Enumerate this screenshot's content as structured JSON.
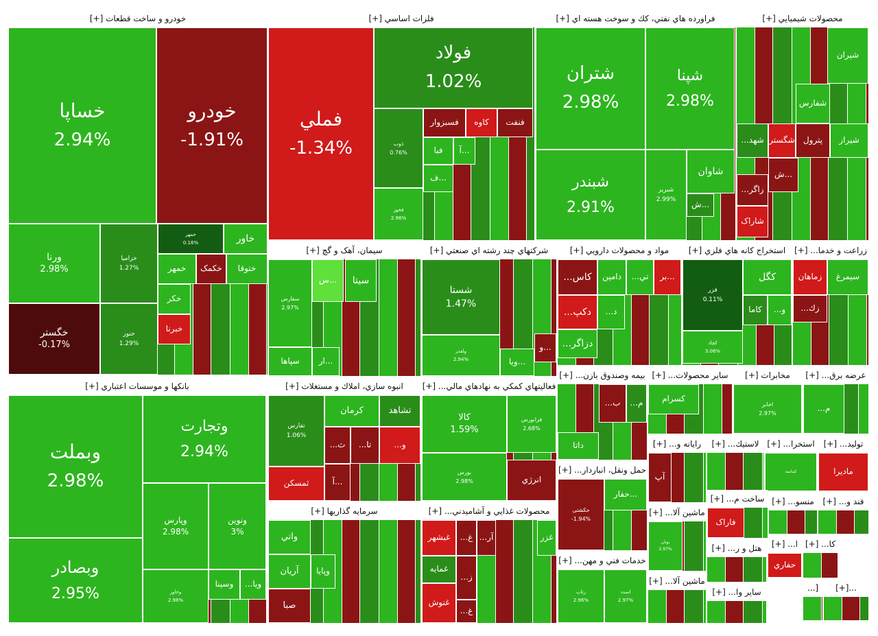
{
  "chart_data": {
    "type": "treemap",
    "colors": {
      "up_strong": "#2db51f",
      "up_mid": "#2a8d1a",
      "up_dark": "#135d12",
      "down": "#8b1515",
      "down_dark": "#4e0b0b",
      "down_bright": "#d11a1a",
      "neutral_light": "#5fe03a"
    },
    "sectors": [
      {
        "name": "خودرو و ساخت قطعات [+]",
        "tiles": [
          {
            "name": "خساپا",
            "pct": "2.94%",
            "value": 2.94
          },
          {
            "name": "خودرو",
            "pct": "-1.91%",
            "value": -1.91
          },
          {
            "name": "ورنا",
            "pct": "2.98%",
            "value": 2.98
          },
          {
            "name": "خزامیا",
            "pct": "1.27%",
            "value": 1.27
          },
          {
            "name": "خگستر",
            "pct": "-0.17%",
            "value": -0.17
          },
          {
            "name": "خنور",
            "pct": "1.29%",
            "value": 1.29
          },
          {
            "name": "خمهر",
            "pct": "0.16%",
            "value": 0.16
          },
          {
            "name": "خاور",
            "pct": "",
            "value": 2.5
          },
          {
            "name": "خمهر",
            "pct": "",
            "value": 2.4
          },
          {
            "name": "خکمک",
            "pct": "",
            "value": -1.5
          },
          {
            "name": "ختوقا",
            "pct": "",
            "value": 2.6
          },
          {
            "name": "خکر",
            "pct": "",
            "value": 2.2
          },
          {
            "name": "خبرنا",
            "pct": "",
            "value": -1.2
          }
        ]
      },
      {
        "name": "فلزات اساسي [+]",
        "tiles": [
          {
            "name": "فملي",
            "pct": "-1.34%",
            "value": -1.34
          },
          {
            "name": "فولاد",
            "pct": "1.02%",
            "value": 1.02
          },
          {
            "name": "ذوب",
            "pct": "0.76%",
            "value": 0.76
          },
          {
            "name": "فخوز",
            "pct": "2.96%",
            "value": 2.96
          },
          {
            "name": "فسبزوار",
            "pct": "",
            "value": -1.0
          },
          {
            "name": "کاوه",
            "pct": "",
            "value": -1.2
          },
          {
            "name": "فنفت",
            "pct": "",
            "value": -0.9
          },
          {
            "name": "فبا",
            "pct": "",
            "value": 2.0
          },
          {
            "name": "آ...",
            "pct": "",
            "value": 2.1
          },
          {
            "name": "ف...",
            "pct": "",
            "value": 2.3
          }
        ]
      },
      {
        "name": "فراورده هاي نفتي، كك و سوخت هسته اي [+]",
        "tiles": [
          {
            "name": "شتران",
            "pct": "2.98%",
            "value": 2.98
          },
          {
            "name": "شپنا",
            "pct": "2.98%",
            "value": 2.98
          },
          {
            "name": "شبندر",
            "pct": "2.91%",
            "value": 2.91
          },
          {
            "name": "شبریز",
            "pct": "2.99%",
            "value": 2.99
          },
          {
            "name": "شاوان",
            "pct": "",
            "value": 2.5
          },
          {
            "name": "ش...",
            "pct": "",
            "value": 1.1
          }
        ]
      },
      {
        "name": "محصولات شيميايي [+]",
        "tiles": [
          {
            "name": "شیران",
            "pct": "",
            "value": 2.5
          },
          {
            "name": "شفارس",
            "pct": "",
            "value": 2.4
          },
          {
            "name": "شیراز",
            "pct": "",
            "value": 2.3
          },
          {
            "name": "پترول",
            "pct": "",
            "value": -1.1
          },
          {
            "name": "شگستر",
            "pct": "",
            "value": -1.3
          },
          {
            "name": "...شهد",
            "pct": "",
            "value": 1.0
          },
          {
            "name": "ش...",
            "pct": "",
            "value": -1.0
          },
          {
            "name": "...زاگر",
            "pct": "",
            "value": -1.1
          },
          {
            "name": "شاراک",
            "pct": "",
            "value": -1.2
          }
        ]
      },
      {
        "name": "سیمان، آهک و گچ [+]",
        "tiles": [
          {
            "name": "سفارس",
            "pct": "2.97%",
            "value": 2.97
          },
          {
            "name": "سیتا",
            "pct": "",
            "value": 2.6
          },
          {
            "name": "س...",
            "pct": "",
            "value": 0.0
          },
          {
            "name": "سپاها",
            "pct": "",
            "value": 2.4
          },
          {
            "name": "ار...",
            "pct": "",
            "value": 2.2
          }
        ]
      },
      {
        "name": "شرکتهاي چند رشته اي صنعتي [+]",
        "tiles": [
          {
            "name": "شستا",
            "pct": "1.47%",
            "value": 1.47
          },
          {
            "name": "ولغدر",
            "pct": "2.94%",
            "value": 2.94
          },
          {
            "name": "ویا...",
            "pct": "",
            "value": 2.3
          },
          {
            "name": "و...",
            "pct": "",
            "value": -1.0
          }
        ]
      },
      {
        "name": "مواد و محصولات دارويي [+]",
        "tiles": [
          {
            "name": "...کاس",
            "pct": "",
            "value": -1.1
          },
          {
            "name": "دامین",
            "pct": "",
            "value": 2.4
          },
          {
            "name": "...تي",
            "pct": "",
            "value": 2.3
          },
          {
            "name": "...دکپ",
            "pct": "",
            "value": -1.2
          },
          {
            "name": "...دزاگر",
            "pct": "",
            "value": 2.2
          },
          {
            "name": "...د",
            "pct": "",
            "value": 2.1
          },
          {
            "name": "بر...",
            "pct": "",
            "value": -1.3
          }
        ]
      },
      {
        "name": "استخراج کانه هاي فلزي [+]",
        "tiles": [
          {
            "name": "فزر",
            "pct": "0.11%",
            "value": 0.11
          },
          {
            "name": "کگل",
            "pct": "",
            "value": 2.5
          },
          {
            "name": "کاما",
            "pct": "",
            "value": 1.0
          },
          {
            "name": "...و",
            "pct": "",
            "value": 2.1
          },
          {
            "name": "کچاد",
            "pct": "3.06%",
            "value": 3.06
          }
        ]
      },
      {
        "name": "زراعت و خدما... [+]",
        "tiles": [
          {
            "name": "زماهان",
            "pct": "",
            "value": -1.2
          },
          {
            "name": "سیمرغ",
            "pct": "",
            "value": 2.4
          },
          {
            "name": "...زك",
            "pct": "",
            "value": -1.1
          }
        ]
      },
      {
        "name": "بانکها و موسسات اعتباري [+]",
        "tiles": [
          {
            "name": "وبملت",
            "pct": "2.98%",
            "value": 2.98
          },
          {
            "name": "وتجارت",
            "pct": "2.94%",
            "value": 2.94
          },
          {
            "name": "وبصادر",
            "pct": "2.95%",
            "value": 2.95
          },
          {
            "name": "وپارس",
            "pct": "2.98%",
            "value": 2.98
          },
          {
            "name": "ونوين",
            "pct": "3%",
            "value": 3.0
          },
          {
            "name": "وخاور",
            "pct": "2.98%",
            "value": 2.98
          },
          {
            "name": "وسینا",
            "pct": "",
            "value": 2.4
          },
          {
            "name": "...ویا",
            "pct": "",
            "value": 2.3
          }
        ]
      },
      {
        "name": "انبوه سازي، املاك و مستغلات [+]",
        "tiles": [
          {
            "name": "تفارس",
            "pct": "1.06%",
            "value": 1.06
          },
          {
            "name": "کرمان",
            "pct": "",
            "value": 2.5
          },
          {
            "name": "تشاهد",
            "pct": "",
            "value": 1.0
          },
          {
            "name": "ثمسکن",
            "pct": "",
            "value": -1.2
          },
          {
            "name": "...تا",
            "pct": "",
            "value": -1.0
          },
          {
            "name": "...ث",
            "pct": "",
            "value": -1.1
          },
          {
            "name": "آ...",
            "pct": "",
            "value": -1.0
          },
          {
            "name": "...و",
            "pct": "",
            "value": -1.2
          }
        ]
      },
      {
        "name": "فعاليتهاي كمكي به نهادهاي مالي... [+]",
        "tiles": [
          {
            "name": "کالا",
            "pct": "1.59%",
            "value": 1.59
          },
          {
            "name": "فرابورس",
            "pct": "2.68%",
            "value": 2.68
          },
          {
            "name": "بورس",
            "pct": "2.98%",
            "value": 2.98
          },
          {
            "name": "انرژي",
            "pct": "",
            "value": -1.1
          }
        ]
      },
      {
        "name": "بیمه وصندوق بازن... [+]",
        "tiles": [
          {
            "name": "داتا",
            "pct": "",
            "value": 2.4
          },
          {
            "name": "...ب",
            "pct": "",
            "value": -1.1
          },
          {
            "name": "...م",
            "pct": "",
            "value": 1.0
          }
        ]
      },
      {
        "name": "ساير محصولات... [+]",
        "tiles": [
          {
            "name": "کسرام",
            "pct": "",
            "value": 2.5
          }
        ]
      },
      {
        "name": "مخابرات [+]",
        "tiles": [
          {
            "name": "اخابر",
            "pct": "2.97%",
            "value": 2.97
          }
        ]
      },
      {
        "name": "عرضه برق... [+]",
        "tiles": [
          {
            "name": "...م",
            "pct": "",
            "value": 2.3
          }
        ]
      },
      {
        "name": "سرمايه گذاريها [+]",
        "tiles": [
          {
            "name": "واتي",
            "pct": "",
            "value": 2.4
          },
          {
            "name": "آریان",
            "pct": "",
            "value": 2.3
          },
          {
            "name": "وپایا",
            "pct": "",
            "value": 2.2
          },
          {
            "name": "صبا",
            "pct": "",
            "value": -1.4
          }
        ]
      },
      {
        "name": "محصولات غذايي و آشاميدني... [+]",
        "tiles": [
          {
            "name": "غبشهر",
            "pct": "",
            "value": -1.2
          },
          {
            "name": "غمایه",
            "pct": "",
            "value": 1.0
          },
          {
            "name": "غنوش",
            "pct": "",
            "value": -1.3
          },
          {
            "name": "...غ",
            "pct": "",
            "value": -1.0
          },
          {
            "name": "...آر",
            "pct": "",
            "value": -1.0
          },
          {
            "name": "غزر",
            "pct": "",
            "value": 2.2
          },
          {
            "name": "...ز",
            "pct": "",
            "value": -1.4
          },
          {
            "name": "...غ",
            "pct": "",
            "value": -1.1
          }
        ]
      },
      {
        "name": "رايانه و... [+]",
        "tiles": [
          {
            "name": "آپ",
            "pct": "",
            "value": -1.1
          }
        ]
      },
      {
        "name": "لاستيك... [+]",
        "tiles": []
      },
      {
        "name": "استخرا... [+]",
        "tiles": [
          {
            "name": "کماسه",
            "pct": "",
            "value": 2.4
          }
        ]
      },
      {
        "name": "توليد... [+]",
        "tiles": [
          {
            "name": "مادیرا",
            "pct": "",
            "value": -1.2
          }
        ]
      },
      {
        "name": "حمل ونقل، انباردار... [+]",
        "tiles": [
          {
            "name": "حکشتی",
            "pct": "-1.94%",
            "value": -1.94
          },
          {
            "name": "حفار...",
            "pct": "",
            "value": 2.3
          }
        ]
      },
      {
        "name": "ماشين آلا... [+]",
        "tiles": [
          {
            "name": "بوتان",
            "pct": "2.97%",
            "value": 2.97
          }
        ]
      },
      {
        "name": "ساخت م... [+]",
        "tiles": [
          {
            "name": "فاراک",
            "pct": "",
            "value": -1.2
          }
        ]
      },
      {
        "name": "منسو... [+]",
        "tiles": []
      },
      {
        "name": "قند و... [+]",
        "tiles": []
      },
      {
        "name": "هتل و ر... [+]",
        "tiles": []
      },
      {
        "name": "ا... [+]",
        "tiles": [
          {
            "name": "حفاري",
            "pct": "",
            "value": -1.2
          }
        ]
      },
      {
        "name": "کا... [+]",
        "tiles": []
      },
      {
        "name": "خدمات فني و مهن... [+]",
        "tiles": [
          {
            "name": "رتاپ",
            "pct": "2.96%",
            "value": 2.96
          },
          {
            "name": "اسدد",
            "pct": "2.97%",
            "value": 2.97
          }
        ]
      },
      {
        "name": "ماشين آلا... [+]",
        "tiles": []
      },
      {
        "name": "ساير وا... [+]",
        "tiles": []
      },
      {
        "name": "[...",
        "tiles": []
      },
      {
        "name": "...[+]",
        "tiles": []
      }
    ]
  }
}
